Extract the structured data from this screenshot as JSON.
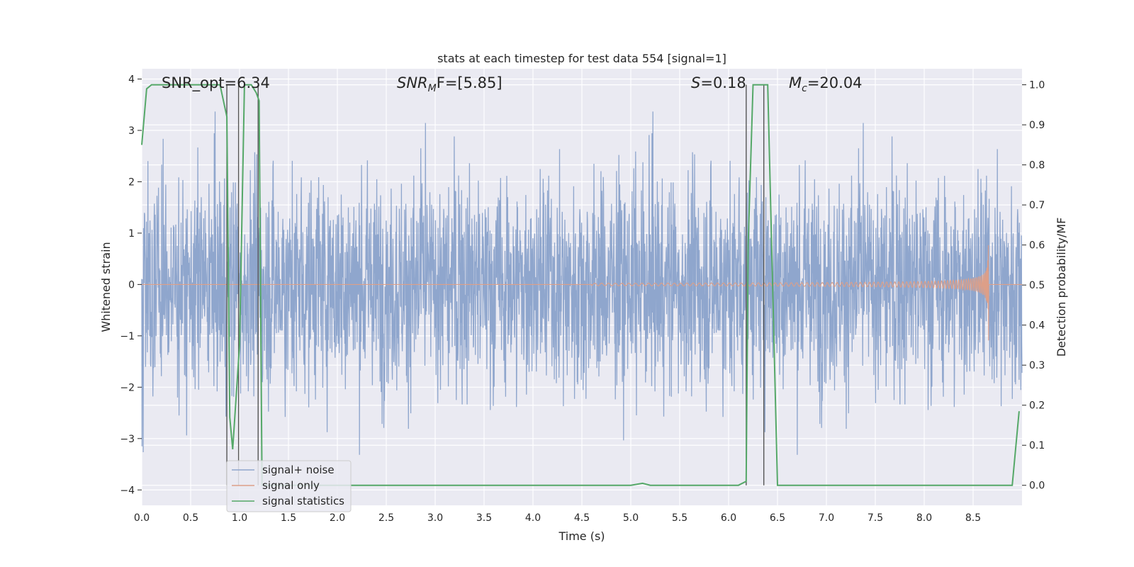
{
  "chart_data": {
    "type": "line",
    "title": "stats at each timestep for test data 554 [signal=1]",
    "xlabel": "Time (s)",
    "ylabel": "Whitened strain",
    "ylabel_right": "Detection probability/MF",
    "xlim": [
      0,
      9
    ],
    "ylim": [
      -4.3,
      4.2
    ],
    "ylim_right": [
      -0.05,
      1.04
    ],
    "x_ticks": [
      "0.0",
      "0.5",
      "1.0",
      "1.5",
      "2.0",
      "2.5",
      "3.0",
      "3.5",
      "4.0",
      "4.5",
      "5.0",
      "5.5",
      "6.0",
      "6.5",
      "7.0",
      "7.5",
      "8.0",
      "8.5"
    ],
    "y_ticks": [
      "4",
      "3",
      "2",
      "1",
      "0",
      "−1",
      "−2",
      "−3",
      "−4"
    ],
    "y_ticks_right": [
      "1.0",
      "0.9",
      "0.8",
      "0.7",
      "0.6",
      "0.5",
      "0.4",
      "0.3",
      "0.2",
      "0.1",
      "0.0"
    ],
    "grid": true,
    "legend_position": "lower-left",
    "annotations": {
      "snr_opt": "SNR_opt=6.34",
      "snr_mf_base": "SNR",
      "snr_mf_sub": "M",
      "snr_mf_rest": "F=[5.85]",
      "s_label": "S",
      "s_value": "=0.18",
      "mc_label": "M",
      "mc_sub": "c",
      "mc_value": "=20.04"
    },
    "vertical_lines": [
      0.87,
      0.99,
      1.19,
      6.18,
      6.36
    ],
    "series": [
      {
        "name": "signal+ noise",
        "color": "#8fa6cd",
        "note": "whitened noisy data, approx ±2 amplitude with spikes to ±4"
      },
      {
        "name": "signal only",
        "color": "#dd9f88",
        "chirp_start": 4.6,
        "chirp_end": 8.66,
        "peak_amplitude": 1.5
      },
      {
        "name": "signal statistics",
        "color": "#55a868",
        "axis": "right",
        "x": [
          0.0,
          0.05,
          0.1,
          0.8,
          0.87,
          0.9,
          0.93,
          1.0,
          1.05,
          1.12,
          1.17,
          1.2,
          1.23,
          1.3,
          5.0,
          5.12,
          5.2,
          6.1,
          6.18,
          6.2,
          6.25,
          6.4,
          6.5,
          8.9,
          8.97
        ],
        "y": [
          0.85,
          0.99,
          1.0,
          1.0,
          0.92,
          0.17,
          0.09,
          0.35,
          1.0,
          1.0,
          0.98,
          0.96,
          0.0,
          0.0,
          0.0,
          0.005,
          0.0,
          0.0,
          0.01,
          0.6,
          1.0,
          1.0,
          0.0,
          0.0,
          0.185
        ]
      }
    ]
  }
}
